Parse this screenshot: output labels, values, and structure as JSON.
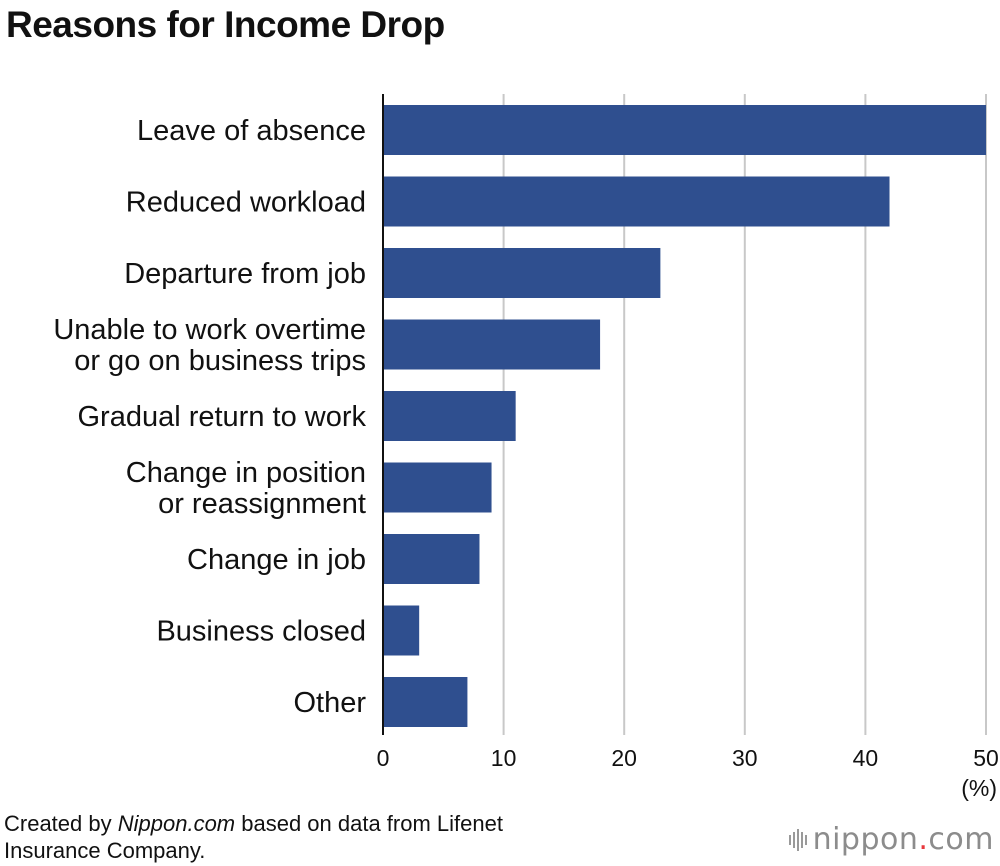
{
  "title": "Reasons for Income Drop",
  "chart_data": {
    "type": "bar",
    "orientation": "horizontal",
    "title": "Reasons for Income Drop",
    "categories": [
      [
        "Leave of absence"
      ],
      [
        "Reduced workload"
      ],
      [
        "Departure from job"
      ],
      [
        "Unable to work overtime",
        "or go on business trips"
      ],
      [
        "Gradual return to work"
      ],
      [
        "Change in position",
        "or reassignment"
      ],
      [
        "Change in job"
      ],
      [
        "Business closed"
      ],
      [
        "Other"
      ]
    ],
    "values": [
      50,
      42,
      23,
      18,
      11,
      9,
      8,
      3,
      7
    ],
    "xlim": [
      0,
      50
    ],
    "xticks": [
      "0",
      "10",
      "20",
      "30",
      "40",
      "50"
    ],
    "unit": "(%)",
    "grid": true,
    "bar_color": "#2f4f8f",
    "grid_color": "#c8c8c8"
  },
  "source": {
    "prefix": "Created by ",
    "brand": "Nippon.com",
    "suffix": " based on data from Lifenet",
    "line2": "Insurance Company."
  },
  "logo": {
    "name": "nippon",
    "dot": ".",
    "tld": "com",
    "accent": "#e8383d"
  }
}
